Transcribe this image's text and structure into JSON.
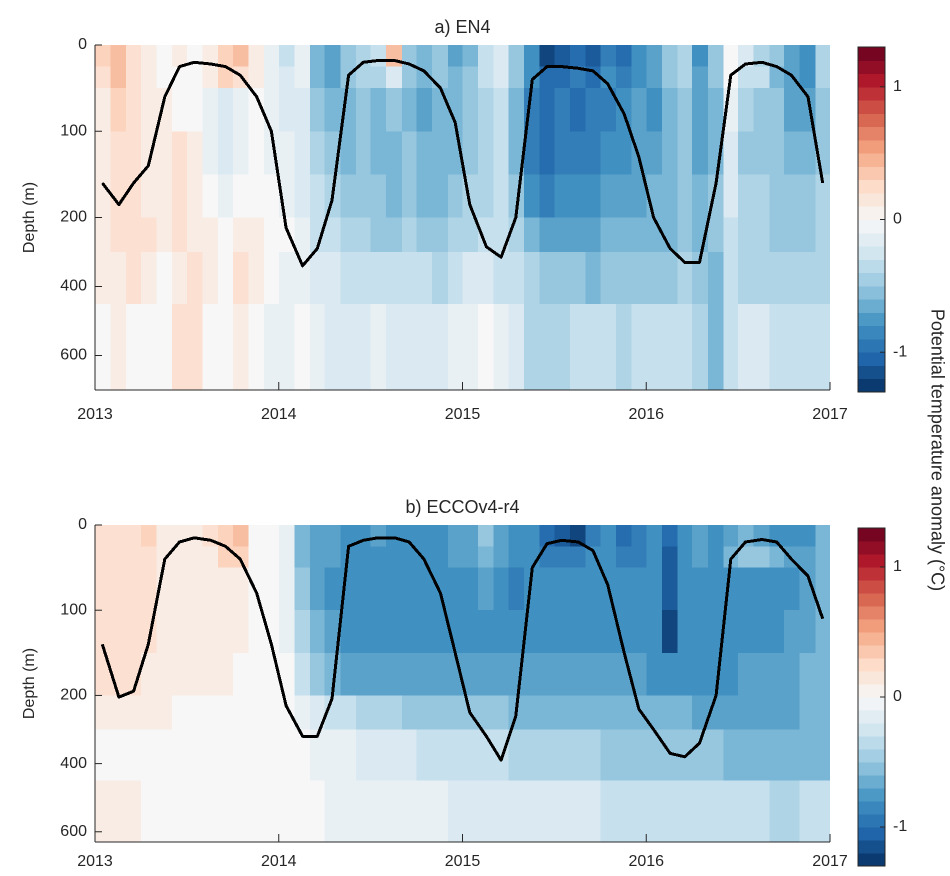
{
  "colorbar_label": "Potential temperature anomaly (°C)",
  "chart_data": [
    {
      "type": "heatmap",
      "title": "a) EN4",
      "ylabel": "Depth (m)",
      "x": [
        2013.04,
        2013.13,
        2013.21,
        2013.29,
        2013.38,
        2013.46,
        2013.54,
        2013.63,
        2013.71,
        2013.79,
        2013.88,
        2013.96,
        2014.04,
        2014.13,
        2014.21,
        2014.29,
        2014.38,
        2014.46,
        2014.54,
        2014.63,
        2014.71,
        2014.79,
        2014.88,
        2014.96,
        2015.04,
        2015.13,
        2015.21,
        2015.29,
        2015.38,
        2015.46,
        2015.54,
        2015.63,
        2015.71,
        2015.79,
        2015.88,
        2015.96,
        2016.04,
        2016.13,
        2016.21,
        2016.29,
        2016.38,
        2016.46,
        2016.54,
        2016.63,
        2016.71,
        2016.79,
        2016.88,
        2016.96
      ],
      "depth_edges": [
        0,
        25,
        50,
        100,
        150,
        200,
        300,
        450,
        700
      ],
      "z": [
        [
          0.3,
          0.4,
          0.2,
          0.1,
          0.0,
          0.1,
          0.0,
          0.1,
          0.3,
          0.4,
          0.1,
          -0.1,
          -0.3,
          -0.1,
          -0.6,
          -0.7,
          -0.5,
          -0.4,
          -0.3,
          0.4,
          -0.5,
          -0.6,
          -0.5,
          -0.7,
          -0.6,
          -0.3,
          -0.2,
          -0.5,
          -0.8,
          -1.2,
          -1.1,
          -1.0,
          -1.1,
          -0.9,
          -1.0,
          -0.8,
          -0.7,
          -0.5,
          -0.4,
          -0.8,
          -0.5,
          0.0,
          -0.2,
          -0.4,
          -0.5,
          -0.7,
          -0.8,
          -0.4
        ],
        [
          0.2,
          0.4,
          0.2,
          0.1,
          0.0,
          0.0,
          0.0,
          0.1,
          0.3,
          0.2,
          0.1,
          -0.1,
          -0.2,
          -0.1,
          -0.6,
          -0.7,
          -0.5,
          -0.4,
          -0.4,
          -0.2,
          -0.5,
          -0.6,
          -0.5,
          -0.6,
          -0.5,
          -0.3,
          -0.2,
          -0.5,
          -0.8,
          -1.0,
          -1.0,
          -0.9,
          -1.0,
          -0.8,
          -0.9,
          -0.8,
          -0.7,
          -0.5,
          -0.4,
          -0.7,
          -0.5,
          0.0,
          -0.3,
          -0.3,
          -0.6,
          -0.7,
          -0.8,
          -0.4
        ],
        [
          0.1,
          0.3,
          0.2,
          0.1,
          0.1,
          0.0,
          0.0,
          -0.1,
          -0.2,
          -0.1,
          0.0,
          -0.1,
          -0.2,
          -0.2,
          -0.5,
          -0.6,
          -0.6,
          -0.5,
          -0.6,
          -0.5,
          -0.6,
          -0.7,
          -0.6,
          -0.6,
          -0.5,
          -0.4,
          -0.3,
          -0.6,
          -0.9,
          -1.0,
          -0.9,
          -1.0,
          -0.9,
          -0.9,
          -0.8,
          -0.7,
          -0.8,
          -0.6,
          -0.5,
          -0.7,
          -0.6,
          -0.1,
          -0.4,
          -0.5,
          -0.5,
          -0.7,
          -0.7,
          -0.5
        ],
        [
          0.1,
          0.2,
          0.2,
          0.1,
          0.1,
          0.2,
          0.1,
          -0.1,
          -0.2,
          -0.1,
          0.0,
          -0.1,
          -0.1,
          -0.2,
          -0.4,
          -0.5,
          -0.6,
          -0.5,
          -0.6,
          -0.6,
          -0.5,
          -0.6,
          -0.6,
          -0.6,
          -0.5,
          -0.4,
          -0.3,
          -0.6,
          -0.9,
          -1.0,
          -0.9,
          -0.9,
          -0.9,
          -0.8,
          -0.8,
          -0.7,
          -0.7,
          -0.6,
          -0.5,
          -0.7,
          -0.6,
          -0.2,
          -0.5,
          -0.5,
          -0.5,
          -0.6,
          -0.6,
          -0.5
        ],
        [
          0.1,
          0.2,
          0.2,
          0.1,
          0.1,
          0.2,
          0.1,
          0.0,
          -0.1,
          0.0,
          0.0,
          0.0,
          -0.1,
          -0.2,
          -0.3,
          -0.4,
          -0.5,
          -0.5,
          -0.5,
          -0.6,
          -0.5,
          -0.6,
          -0.6,
          -0.5,
          -0.4,
          -0.4,
          -0.3,
          -0.5,
          -0.8,
          -0.9,
          -0.8,
          -0.8,
          -0.8,
          -0.7,
          -0.7,
          -0.7,
          -0.6,
          -0.6,
          -0.5,
          -0.6,
          -0.5,
          -0.2,
          -0.4,
          -0.4,
          -0.5,
          -0.5,
          -0.5,
          -0.4
        ],
        [
          0.1,
          0.2,
          0.2,
          0.2,
          0.1,
          0.2,
          0.1,
          0.1,
          0.0,
          0.1,
          0.1,
          0.0,
          0.0,
          -0.1,
          -0.3,
          -0.3,
          -0.4,
          -0.4,
          -0.5,
          -0.5,
          -0.4,
          -0.5,
          -0.5,
          -0.4,
          -0.4,
          -0.3,
          -0.3,
          -0.4,
          -0.6,
          -0.7,
          -0.7,
          -0.7,
          -0.7,
          -0.6,
          -0.6,
          -0.6,
          -0.6,
          -0.6,
          -0.5,
          -0.6,
          -0.5,
          -0.3,
          -0.4,
          -0.4,
          -0.5,
          -0.5,
          -0.5,
          -0.4
        ],
        [
          0.1,
          0.1,
          0.2,
          0.1,
          0.0,
          0.1,
          0.2,
          0.1,
          0.0,
          0.2,
          0.1,
          0.0,
          -0.1,
          -0.1,
          -0.2,
          -0.2,
          -0.3,
          -0.3,
          -0.3,
          -0.3,
          -0.3,
          -0.3,
          -0.4,
          -0.3,
          -0.2,
          -0.2,
          -0.3,
          -0.3,
          -0.4,
          -0.5,
          -0.5,
          -0.5,
          -0.6,
          -0.5,
          -0.5,
          -0.5,
          -0.5,
          -0.5,
          -0.4,
          -0.5,
          -0.6,
          -0.3,
          -0.4,
          -0.4,
          -0.4,
          -0.4,
          -0.4,
          -0.4
        ],
        [
          0.0,
          0.1,
          0.0,
          0.0,
          0.0,
          0.2,
          0.2,
          0.0,
          0.0,
          0.1,
          0.0,
          -0.1,
          -0.1,
          0.0,
          -0.1,
          -0.2,
          -0.2,
          -0.2,
          -0.1,
          -0.2,
          -0.2,
          -0.2,
          -0.2,
          -0.1,
          -0.1,
          0.0,
          -0.1,
          -0.2,
          -0.4,
          -0.4,
          -0.4,
          -0.3,
          -0.3,
          -0.3,
          -0.4,
          -0.3,
          -0.3,
          -0.3,
          -0.3,
          -0.4,
          -0.6,
          -0.3,
          -0.2,
          -0.2,
          -0.3,
          -0.3,
          -0.3,
          -0.3
        ]
      ],
      "line": {
        "color": "#000000",
        "values": [
          160,
          185,
          160,
          140,
          60,
          25,
          20,
          22,
          25,
          35,
          60,
          100,
          230,
          340,
          290,
          180,
          35,
          20,
          18,
          18,
          22,
          30,
          50,
          90,
          185,
          285,
          315,
          200,
          40,
          25,
          25,
          27,
          30,
          45,
          80,
          130,
          200,
          290,
          330,
          330,
          160,
          35,
          22,
          20,
          25,
          35,
          60,
          160
        ]
      },
      "xlim": [
        2013,
        2017
      ],
      "xticks": [
        2013,
        2014,
        2015,
        2016,
        2017
      ],
      "ylim": [
        0,
        700
      ],
      "yticks": [
        0,
        100,
        200,
        400,
        600
      ],
      "yreversed": true,
      "ybreak": 200,
      "clim": [
        -1.3,
        1.3
      ],
      "cticks": [
        -1,
        0,
        1
      ],
      "colormap": [
        "#053061",
        "#2166ac",
        "#4393c3",
        "#92c5de",
        "#d1e5f0",
        "#f7f7f7",
        "#fddbc7",
        "#f4a582",
        "#d6604d",
        "#b2182b",
        "#67001f"
      ]
    },
    {
      "type": "heatmap",
      "title": "b) ECCOv4-r4",
      "ylabel": "Depth (m)",
      "x": [
        2013.04,
        2013.13,
        2013.21,
        2013.29,
        2013.38,
        2013.46,
        2013.54,
        2013.63,
        2013.71,
        2013.79,
        2013.88,
        2013.96,
        2014.04,
        2014.13,
        2014.21,
        2014.29,
        2014.38,
        2014.46,
        2014.54,
        2014.63,
        2014.71,
        2014.79,
        2014.88,
        2014.96,
        2015.04,
        2015.13,
        2015.21,
        2015.29,
        2015.38,
        2015.46,
        2015.54,
        2015.63,
        2015.71,
        2015.79,
        2015.88,
        2015.96,
        2016.04,
        2016.13,
        2016.21,
        2016.29,
        2016.38,
        2016.46,
        2016.54,
        2016.63,
        2016.71,
        2016.79,
        2016.88,
        2016.96
      ],
      "depth_edges": [
        0,
        25,
        50,
        100,
        150,
        200,
        300,
        450,
        630
      ],
      "z": [
        [
          0.2,
          0.2,
          0.2,
          0.3,
          0.1,
          0.1,
          0.1,
          0.2,
          0.3,
          0.4,
          0.0,
          0.0,
          -0.1,
          -0.6,
          -0.7,
          -0.7,
          -0.8,
          -0.8,
          -0.7,
          -0.8,
          -0.8,
          -0.8,
          -0.8,
          -0.7,
          -0.7,
          -0.5,
          -0.7,
          -0.8,
          -0.8,
          -1.0,
          -1.1,
          -1.2,
          -0.9,
          -0.8,
          -1.0,
          -0.9,
          -0.8,
          -1.0,
          -0.8,
          -0.7,
          -0.8,
          -0.7,
          -0.6,
          -0.7,
          -0.8,
          -0.8,
          -0.8,
          -0.6
        ],
        [
          0.2,
          0.2,
          0.2,
          0.2,
          0.1,
          0.1,
          0.1,
          0.1,
          0.3,
          0.3,
          0.0,
          0.0,
          -0.1,
          -0.6,
          -0.7,
          -0.7,
          -0.8,
          -0.8,
          -0.8,
          -0.8,
          -0.8,
          -0.8,
          -0.8,
          -0.7,
          -0.7,
          -0.6,
          -0.7,
          -0.8,
          -0.8,
          -0.9,
          -0.9,
          -0.9,
          -0.8,
          -0.8,
          -0.9,
          -0.9,
          -0.8,
          -1.1,
          -0.8,
          -0.7,
          -0.8,
          -0.6,
          -0.5,
          -0.5,
          -0.6,
          -0.7,
          -0.7,
          -0.6
        ],
        [
          0.2,
          0.2,
          0.2,
          0.2,
          0.1,
          0.1,
          0.1,
          0.1,
          0.1,
          0.1,
          0.0,
          0.0,
          -0.1,
          -0.5,
          -0.7,
          -0.8,
          -0.8,
          -0.8,
          -0.8,
          -0.8,
          -0.8,
          -0.8,
          -0.8,
          -0.8,
          -0.8,
          -0.7,
          -0.8,
          -0.9,
          -0.8,
          -0.8,
          -0.8,
          -0.8,
          -0.8,
          -0.8,
          -0.8,
          -0.8,
          -0.8,
          -1.1,
          -0.8,
          -0.8,
          -0.8,
          -0.8,
          -0.8,
          -0.8,
          -0.8,
          -0.8,
          -0.7,
          -0.6
        ],
        [
          0.2,
          0.2,
          0.2,
          0.2,
          0.1,
          0.1,
          0.1,
          0.1,
          0.1,
          0.1,
          0.0,
          0.0,
          -0.1,
          -0.4,
          -0.6,
          -0.7,
          -0.8,
          -0.8,
          -0.8,
          -0.8,
          -0.8,
          -0.8,
          -0.8,
          -0.8,
          -0.8,
          -0.8,
          -0.8,
          -0.8,
          -0.8,
          -0.8,
          -0.8,
          -0.8,
          -0.8,
          -0.8,
          -0.8,
          -0.8,
          -0.8,
          -1.2,
          -0.8,
          -0.8,
          -0.8,
          -0.8,
          -0.8,
          -0.8,
          -0.8,
          -0.7,
          -0.7,
          -0.6
        ],
        [
          0.2,
          0.2,
          0.2,
          0.1,
          0.1,
          0.1,
          0.1,
          0.1,
          0.1,
          0.0,
          0.0,
          0.0,
          0.0,
          -0.3,
          -0.5,
          -0.6,
          -0.7,
          -0.7,
          -0.7,
          -0.7,
          -0.7,
          -0.7,
          -0.7,
          -0.7,
          -0.7,
          -0.7,
          -0.7,
          -0.7,
          -0.7,
          -0.7,
          -0.7,
          -0.7,
          -0.7,
          -0.7,
          -0.7,
          -0.7,
          -0.8,
          -0.8,
          -0.8,
          -0.8,
          -0.8,
          -0.8,
          -0.7,
          -0.7,
          -0.7,
          -0.7,
          -0.6,
          -0.6
        ],
        [
          0.1,
          0.1,
          0.1,
          0.1,
          0.1,
          0.0,
          0.0,
          0.0,
          0.0,
          0.0,
          0.0,
          0.0,
          0.0,
          -0.1,
          -0.2,
          -0.3,
          -0.3,
          -0.4,
          -0.4,
          -0.4,
          -0.5,
          -0.5,
          -0.5,
          -0.5,
          -0.5,
          -0.5,
          -0.5,
          -0.6,
          -0.6,
          -0.6,
          -0.6,
          -0.6,
          -0.6,
          -0.6,
          -0.6,
          -0.6,
          -0.6,
          -0.6,
          -0.6,
          -0.7,
          -0.7,
          -0.7,
          -0.7,
          -0.7,
          -0.7,
          -0.7,
          -0.6,
          -0.6
        ],
        [
          0.0,
          0.0,
          0.0,
          0.0,
          0.0,
          0.0,
          0.0,
          0.0,
          0.0,
          0.0,
          0.0,
          0.0,
          0.0,
          0.0,
          -0.1,
          -0.1,
          -0.1,
          -0.2,
          -0.2,
          -0.2,
          -0.2,
          -0.3,
          -0.3,
          -0.3,
          -0.3,
          -0.3,
          -0.3,
          -0.4,
          -0.4,
          -0.4,
          -0.4,
          -0.4,
          -0.4,
          -0.5,
          -0.5,
          -0.5,
          -0.5,
          -0.5,
          -0.5,
          -0.5,
          -0.5,
          -0.6,
          -0.6,
          -0.6,
          -0.6,
          -0.6,
          -0.6,
          -0.6
        ],
        [
          0.1,
          0.1,
          0.1,
          0.0,
          0.0,
          0.0,
          0.0,
          0.0,
          0.0,
          0.0,
          0.0,
          0.0,
          0.0,
          0.0,
          0.0,
          -0.1,
          -0.1,
          -0.1,
          -0.1,
          -0.1,
          -0.1,
          -0.1,
          -0.1,
          -0.2,
          -0.2,
          -0.2,
          -0.2,
          -0.2,
          -0.2,
          -0.2,
          -0.2,
          -0.2,
          -0.2,
          -0.3,
          -0.3,
          -0.3,
          -0.3,
          -0.3,
          -0.3,
          -0.3,
          -0.3,
          -0.3,
          -0.3,
          -0.3,
          -0.4,
          -0.4,
          -0.3,
          -0.3
        ]
      ],
      "line": {
        "color": "#000000",
        "values": [
          140,
          205,
          195,
          140,
          40,
          20,
          15,
          18,
          25,
          40,
          80,
          140,
          230,
          320,
          320,
          210,
          25,
          18,
          15,
          15,
          20,
          40,
          80,
          150,
          250,
          320,
          390,
          260,
          50,
          22,
          18,
          20,
          30,
          70,
          150,
          240,
          300,
          370,
          380,
          340,
          200,
          40,
          20,
          17,
          20,
          40,
          60,
          110
        ]
      },
      "xlim": [
        2013,
        2017
      ],
      "xticks": [
        2013,
        2014,
        2015,
        2016,
        2017
      ],
      "ylim": [
        0,
        630
      ],
      "yticks": [
        0,
        100,
        200,
        400,
        600
      ],
      "yreversed": true,
      "ybreak": 200,
      "clim": [
        -1.3,
        1.3
      ],
      "cticks": [
        -1,
        0,
        1
      ],
      "colormap": [
        "#053061",
        "#2166ac",
        "#4393c3",
        "#92c5de",
        "#d1e5f0",
        "#f7f7f7",
        "#fddbc7",
        "#f4a582",
        "#d6604d",
        "#b2182b",
        "#67001f"
      ]
    }
  ]
}
